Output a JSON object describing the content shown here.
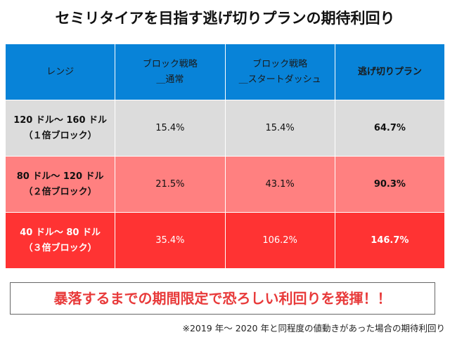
{
  "title": "セミリタイアを目指す逃げ切りプランの期待利回り",
  "table": {
    "headers": [
      {
        "line1": "レンジ",
        "line2": ""
      },
      {
        "line1": "ブロック戦略",
        "line2": "＿通常"
      },
      {
        "line1": "ブロック戦略",
        "line2": "＿スタートダッシュ"
      },
      {
        "line1": "逃げ切りプラン",
        "line2": ""
      }
    ],
    "rows": [
      {
        "range": "120 ドル～ 160 ドル",
        "block": "（１倍ブロック）",
        "normal": "15.4%",
        "start_dash": "15.4%",
        "plan": "64.7%"
      },
      {
        "range": "80 ドル～ 120 ドル",
        "block": "（２倍ブロック）",
        "normal": "21.5%",
        "start_dash": "43.1%",
        "plan": "90.3%"
      },
      {
        "range": "40 ドル～ 80 ドル",
        "block": "（３倍ブロック）",
        "normal": "35.4%",
        "start_dash": "106.2%",
        "plan": "146.7%"
      }
    ]
  },
  "banner": "暴落するまでの期間限定で恐ろしい利回りを発揮！！",
  "footnote": "※2019 年～ 2020 年と同程度の値動きがあった場合の期待利回り",
  "colors": {
    "header": "#0883d8",
    "row1": "#dcdcdc",
    "row2": "#ff8080",
    "row3": "#ff3333",
    "banner_text": "#e83a3a"
  }
}
